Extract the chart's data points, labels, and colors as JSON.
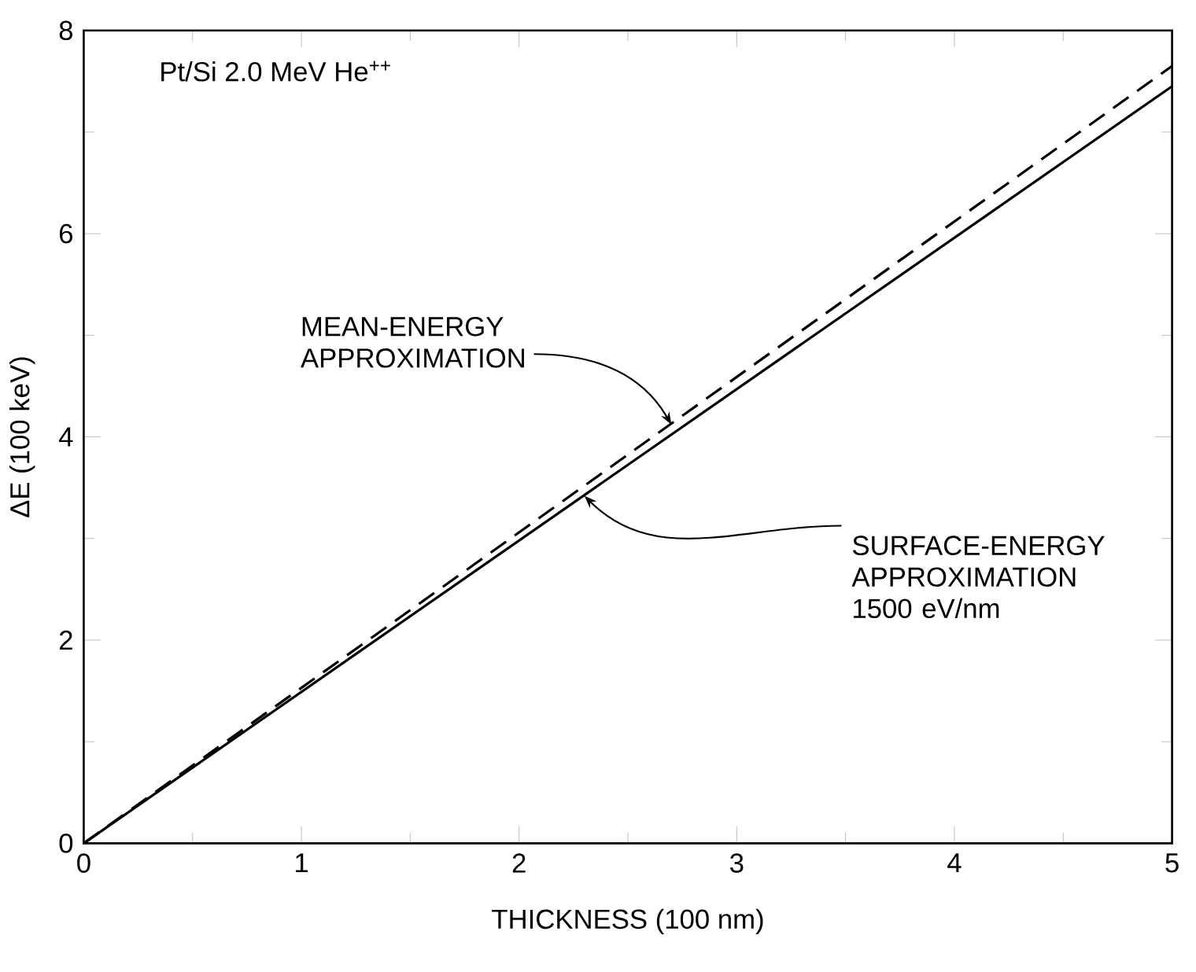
{
  "chart_data": {
    "type": "line",
    "xlabel": "THICKNESS (100 nm)",
    "ylabel": "ΔE (100 keV)",
    "annotations": [
      "Pt/Si 2.0 MeV He$^{++}$",
      {
        "text": "MEAN-ENERGY APPROXIMATION",
        "x": 2.7,
        "y": 4.12
      },
      {
        "text": "SURFACE-ENERGY APPROXIMATION 1500 eV/nm",
        "x": 2.3,
        "y": 3.42
      }
    ],
    "series": [
      {
        "color": "#000000",
        "line_style": "dashed",
        "values": [
          0,
          7.65
        ]
      },
      {
        "color": "#000000",
        "line_style": "solid",
        "values": [
          0,
          7.45
        ]
      }
    ],
    "x": [
      0,
      5
    ],
    "xlim": [
      0,
      5
    ],
    "ylim": [
      0,
      8
    ],
    "xticks": [
      0,
      1,
      2,
      3,
      4,
      5
    ],
    "yticks": [
      0,
      2,
      4,
      6,
      8
    ],
    "grid": false,
    "marker": "none"
  }
}
